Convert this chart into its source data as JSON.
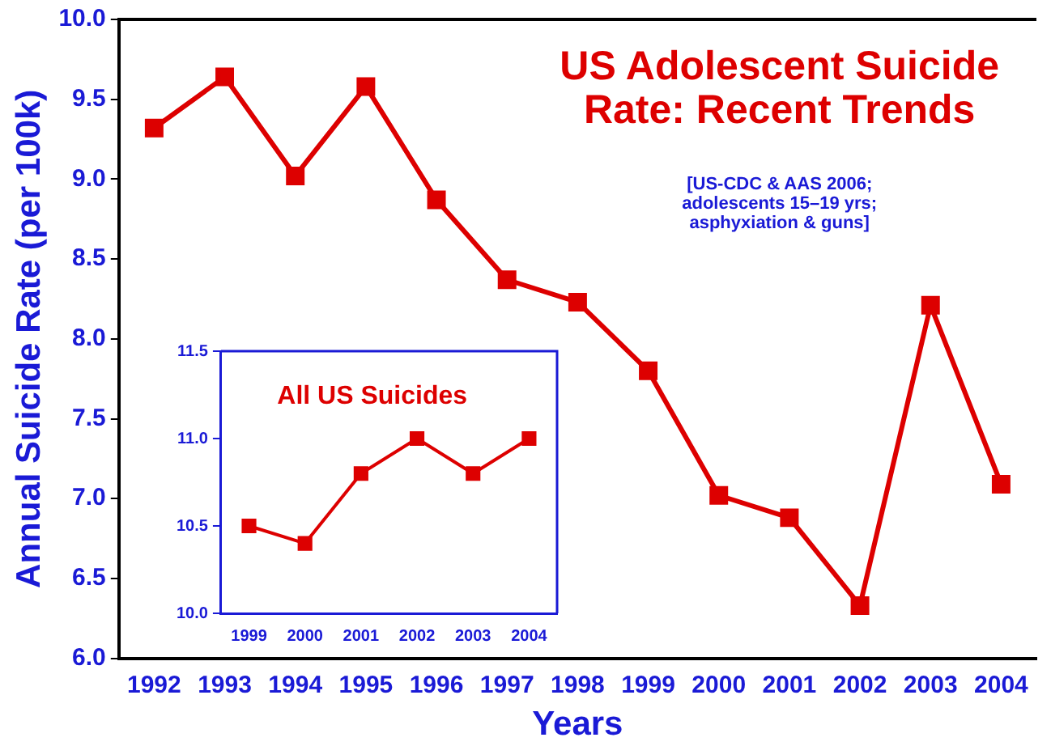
{
  "chart_data": [
    {
      "type": "line",
      "title": "US Adolescent Suicide\nRate: Recent Trends",
      "xlabel": "Years",
      "ylabel": "Annual Suicide Rate (per 100k)",
      "annotations": [
        "[US-CDC & AAS 2006;\nadolescents 15–19 yrs;\nasphyxiation & guns]"
      ],
      "categories": [
        "1992",
        "1993",
        "1994",
        "1995",
        "1996",
        "1997",
        "1998",
        "1999",
        "2000",
        "2001",
        "2002",
        "2003",
        "2004"
      ],
      "series": [
        {
          "color": "#dd0000",
          "values": [
            9.32,
            9.64,
            9.02,
            9.58,
            8.87,
            8.37,
            8.23,
            7.8,
            7.02,
            6.88,
            6.33,
            8.21,
            7.09
          ]
        }
      ],
      "ylim": [
        6,
        10
      ],
      "yticks": [
        {
          "value": 6,
          "label": "6.0"
        },
        {
          "value": 6.5,
          "label": "6.5"
        },
        {
          "value": 7,
          "label": "7.0"
        },
        {
          "value": 7.5,
          "label": "7.5"
        },
        {
          "value": 8,
          "label": "8.0"
        },
        {
          "value": 8.5,
          "label": "8.5"
        },
        {
          "value": 9,
          "label": "9.0"
        },
        {
          "value": 9.5,
          "label": "9.5"
        },
        {
          "value": 10,
          "label": "10.0"
        }
      ],
      "grid": false,
      "legend": false,
      "marker": "square",
      "line_style": "solid"
    },
    {
      "type": "line",
      "title": "All US Suicides",
      "categories": [
        "1999",
        "2000",
        "2001",
        "2002",
        "2003",
        "2004"
      ],
      "series": [
        {
          "color": "#dd0000",
          "values": [
            10.5,
            10.4,
            10.8,
            11.0,
            10.8,
            11.0
          ]
        }
      ],
      "ylim": [
        10,
        11.5
      ],
      "yticks": [
        {
          "value": 10,
          "label": "10.0"
        },
        {
          "value": 10.5,
          "label": "10.5"
        },
        {
          "value": 11,
          "label": "11.0"
        },
        {
          "value": 11.5,
          "label": "11.5"
        }
      ],
      "grid": false,
      "legend": false,
      "marker": "square",
      "line_style": "solid"
    }
  ]
}
